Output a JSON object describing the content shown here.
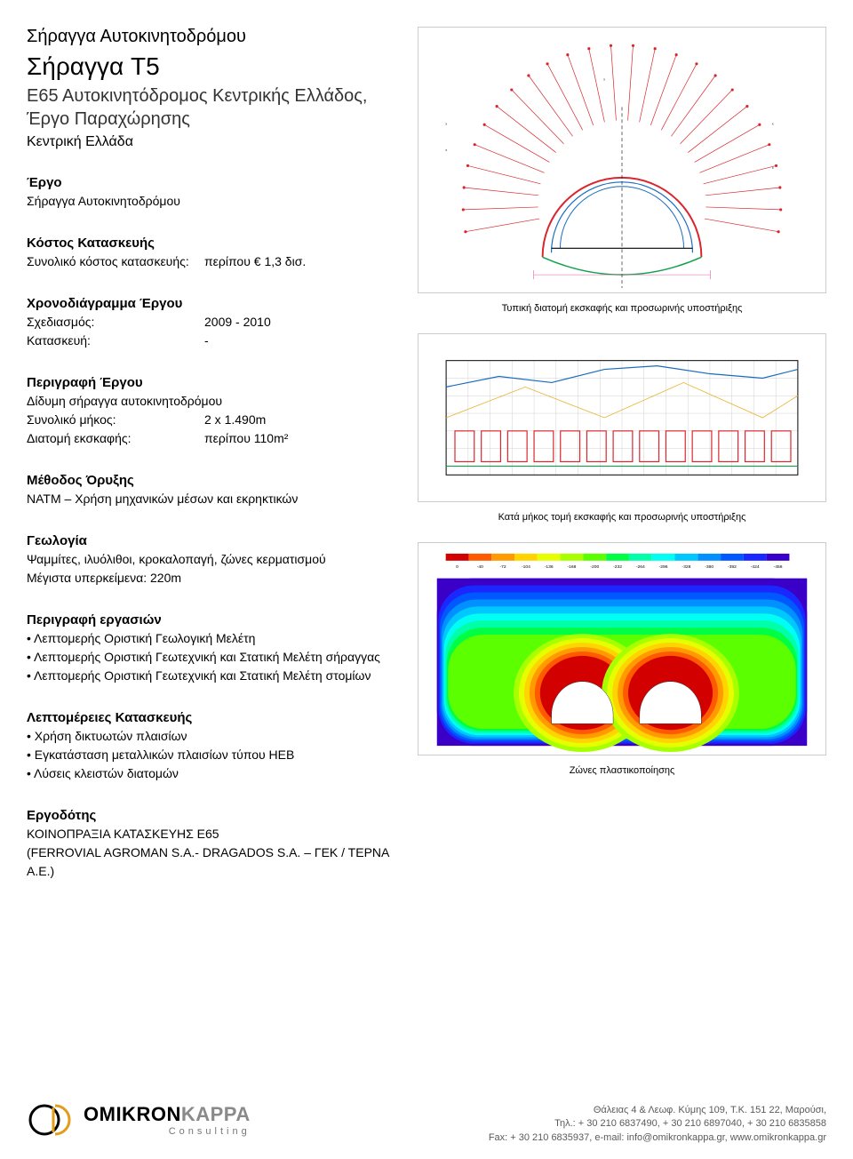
{
  "header": {
    "category": "Σήραγγα Αυτοκινητοδρόμου",
    "title": "Σήραγγα T5",
    "subtitle": "Ε65 Αυτοκινητόδρομος Κεντρικής Ελλάδος, Έργο Παραχώρησης",
    "location": "Κεντρική Ελλάδα"
  },
  "project": {
    "heading": "Έργο",
    "value": "Σήραγγα Αυτοκινητοδρόμου"
  },
  "cost": {
    "heading": "Κόστος Κατασκευής",
    "label": "Συνολικό κόστος κατασκευής:",
    "value": "περίπου € 1,3 δισ."
  },
  "schedule": {
    "heading": "Χρονοδιάγραμμα Έργου",
    "rows": [
      {
        "label": "Σχεδιασμός:",
        "value": "2009 - 2010"
      },
      {
        "label": "Κατασκευή:",
        "value": "-"
      }
    ]
  },
  "description": {
    "heading": "Περιγραφή Έργου",
    "line1": "Δίδυμη σήραγγα αυτοκινητοδρόμου",
    "rows": [
      {
        "label": "Συνολικό μήκος:",
        "value": "2 x 1.490m"
      },
      {
        "label": "Διατομή εκσκαφής:",
        "value": "περίπου 110m²"
      }
    ]
  },
  "method": {
    "heading": "Μέθοδος Όρυξης",
    "text": "NATM – Χρήση μηχανικών μέσων και εκρηκτικών"
  },
  "geology": {
    "heading": "Γεωλογία",
    "line1": "Ψαμμίτες, ιλυόλιθοι, κροκαλοπαγή, ζώνες κερματισμού",
    "line2": "Μέγιστα υπερκείμενα: 220m"
  },
  "works": {
    "heading": "Περιγραφή εργασιών",
    "items": [
      "Λεπτομερής Οριστική Γεωλογική Μελέτη",
      "Λεπτομερής Οριστική Γεωτεχνική και Στατική Μελέτη σήραγγας",
      "Λεπτομερής Οριστική Γεωτεχνική και Στατική Μελέτη στομίων"
    ]
  },
  "details": {
    "heading": "Λεπτομέρειες Κατασκευής",
    "items": [
      "Χρήση δικτυωτών πλαισίων",
      "Εγκατάσταση μεταλλικών πλαισίων τύπου HEB",
      "Λύσεις κλειστών διατομών"
    ]
  },
  "client": {
    "heading": "Εργοδότης",
    "line1": "ΚΟΙΝΟΠΡΑΞΙΑ ΚΑΤΑΣΚΕΥΗΣ Ε65",
    "line2": "(FERROVIAL AGROMAN S.A.- DRAGADOS S.A. – ΓΕΚ / ΤΕΡΝΑ Α.Ε.)"
  },
  "figures": {
    "fig1": {
      "caption": "Τυπική διατομή εκσκαφής και προσωρινής υποστήριξης",
      "colors": {
        "radial_lines": "#d9262d",
        "tunnel_outer": "#d9262d",
        "tunnel_inner": "#1a6bbe",
        "invert_line": "#11a24b",
        "dim_lines": "#e85aa4",
        "axis": "#000000",
        "bg": "#ffffff"
      }
    },
    "fig2": {
      "caption": "Κατά μήκος τομή εκσκαφής και προσωρινής υποστήριξης",
      "colors": {
        "frame": "#000000",
        "grid": "#d0d0d0",
        "terrain": "#1a6bbe",
        "support_boxes": "#d9262d",
        "labels": "#000000",
        "bg": "#ffffff",
        "green_line": "#11a24b",
        "diag": "#e8b22a"
      }
    },
    "fig3": {
      "caption": "Ζώνες πλαστικοποίησης",
      "legend_colors": [
        "#d30000",
        "#ff5a00",
        "#ff9a00",
        "#ffd400",
        "#e6ff00",
        "#a8ff00",
        "#5cff00",
        "#00ff44",
        "#00ffa8",
        "#00fff2",
        "#00c8ff",
        "#0090ff",
        "#0058ff",
        "#1a28ff",
        "#3a00c8"
      ],
      "legend_values": [
        "0",
        "-40",
        "-72",
        "-104",
        "-136",
        "-168",
        "-200",
        "-232",
        "-264",
        "-296",
        "-328",
        "-360",
        "-392",
        "-424",
        "-456"
      ],
      "bg": "#ffffff"
    }
  },
  "footer": {
    "company_a": "OMIKRON",
    "company_b": "KAPPA",
    "tagline": "Consulting",
    "address": "Θάλειας 4 & Λεωφ. Κύμης 109, T.K. 151 22, Μαρούσι,",
    "phones": "Τηλ.: + 30 210 6837490, + 30 210 6897040, + 30 210 6835858",
    "fax_mail": "Fax: + 30 210 6835937, e-mail: info@omikronkappa.gr, www.omikronkappa.gr",
    "logo_colors": {
      "ring_a": "#000000",
      "ring_b": "#e39b1e"
    }
  }
}
